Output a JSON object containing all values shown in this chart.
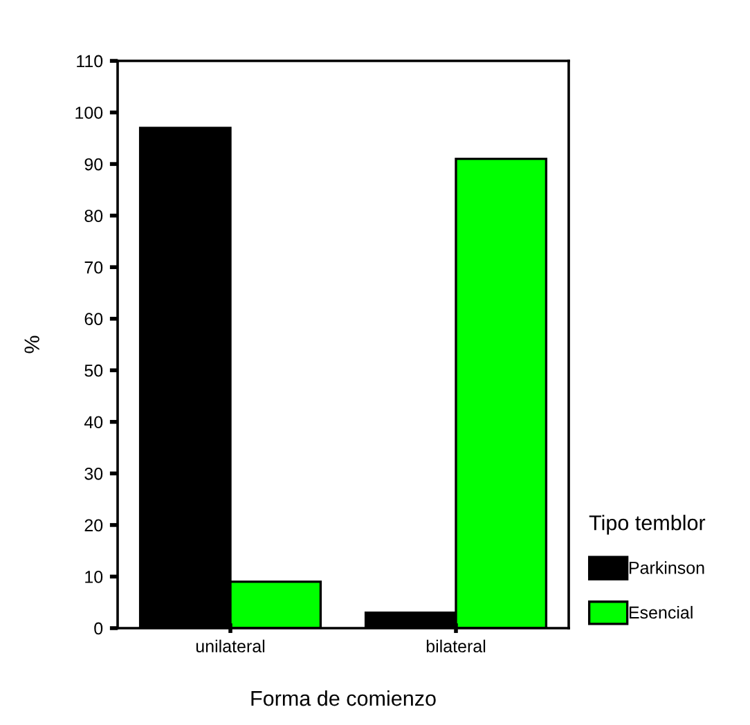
{
  "chart_data": {
    "type": "bar",
    "xlabel": "Forma de comienzo",
    "ylabel": "%",
    "legend_title": "Tipo temblor",
    "categories": [
      "unilateral",
      "bilateral"
    ],
    "series": [
      {
        "name": "Parkinson",
        "color": "#000000",
        "values": [
          97,
          3
        ]
      },
      {
        "name": "Esencial",
        "color": "#00ff00",
        "values": [
          9,
          91
        ]
      }
    ],
    "ylim": [
      0,
      110
    ],
    "yticks": [
      0,
      10,
      20,
      30,
      40,
      50,
      60,
      70,
      80,
      90,
      100,
      110
    ],
    "grid": false,
    "legend": "right"
  }
}
